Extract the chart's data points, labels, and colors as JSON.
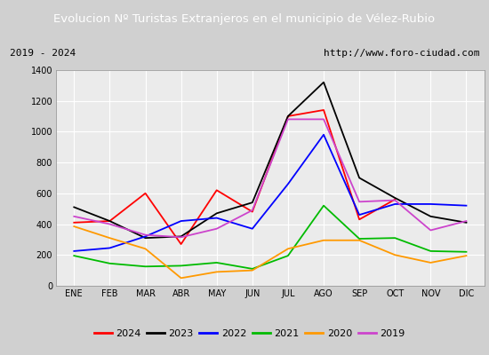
{
  "title": "Evolucion Nº Turistas Extranjeros en el municipio de Vélez-Rubio",
  "subtitle_left": "2019 - 2024",
  "subtitle_right": "http://www.foro-ciudad.com",
  "months": [
    "ENE",
    "FEB",
    "MAR",
    "ABR",
    "MAY",
    "JUN",
    "JUL",
    "AGO",
    "SEP",
    "OCT",
    "NOV",
    "DIC"
  ],
  "ylim": [
    0,
    1400
  ],
  "yticks": [
    0,
    200,
    400,
    600,
    800,
    1000,
    1200,
    1400
  ],
  "series": {
    "2024": {
      "color": "#ff0000",
      "data": [
        410,
        420,
        600,
        270,
        620,
        480,
        1100,
        1140,
        430,
        560,
        null,
        null
      ]
    },
    "2023": {
      "color": "#000000",
      "data": [
        510,
        420,
        310,
        320,
        470,
        540,
        1100,
        1320,
        700,
        570,
        450,
        410
      ]
    },
    "2022": {
      "color": "#0000ff",
      "data": [
        225,
        245,
        320,
        420,
        440,
        370,
        660,
        980,
        460,
        530,
        530,
        520
      ]
    },
    "2021": {
      "color": "#00bb00",
      "data": [
        195,
        145,
        125,
        130,
        150,
        110,
        195,
        520,
        305,
        310,
        225,
        220
      ]
    },
    "2020": {
      "color": "#ff9900",
      "data": [
        385,
        310,
        240,
        50,
        90,
        100,
        240,
        295,
        295,
        200,
        150,
        195
      ]
    },
    "2019": {
      "color": "#cc44cc",
      "data": [
        450,
        400,
        330,
        315,
        370,
        490,
        1080,
        1080,
        545,
        555,
        360,
        420
      ]
    }
  },
  "title_bg_color": "#4472c4",
  "title_font_color": "#ffffff",
  "plot_bg_color": "#ebebeb",
  "grid_color": "#ffffff",
  "border_color": "#999999",
  "legend_order": [
    "2024",
    "2023",
    "2022",
    "2021",
    "2020",
    "2019"
  ]
}
